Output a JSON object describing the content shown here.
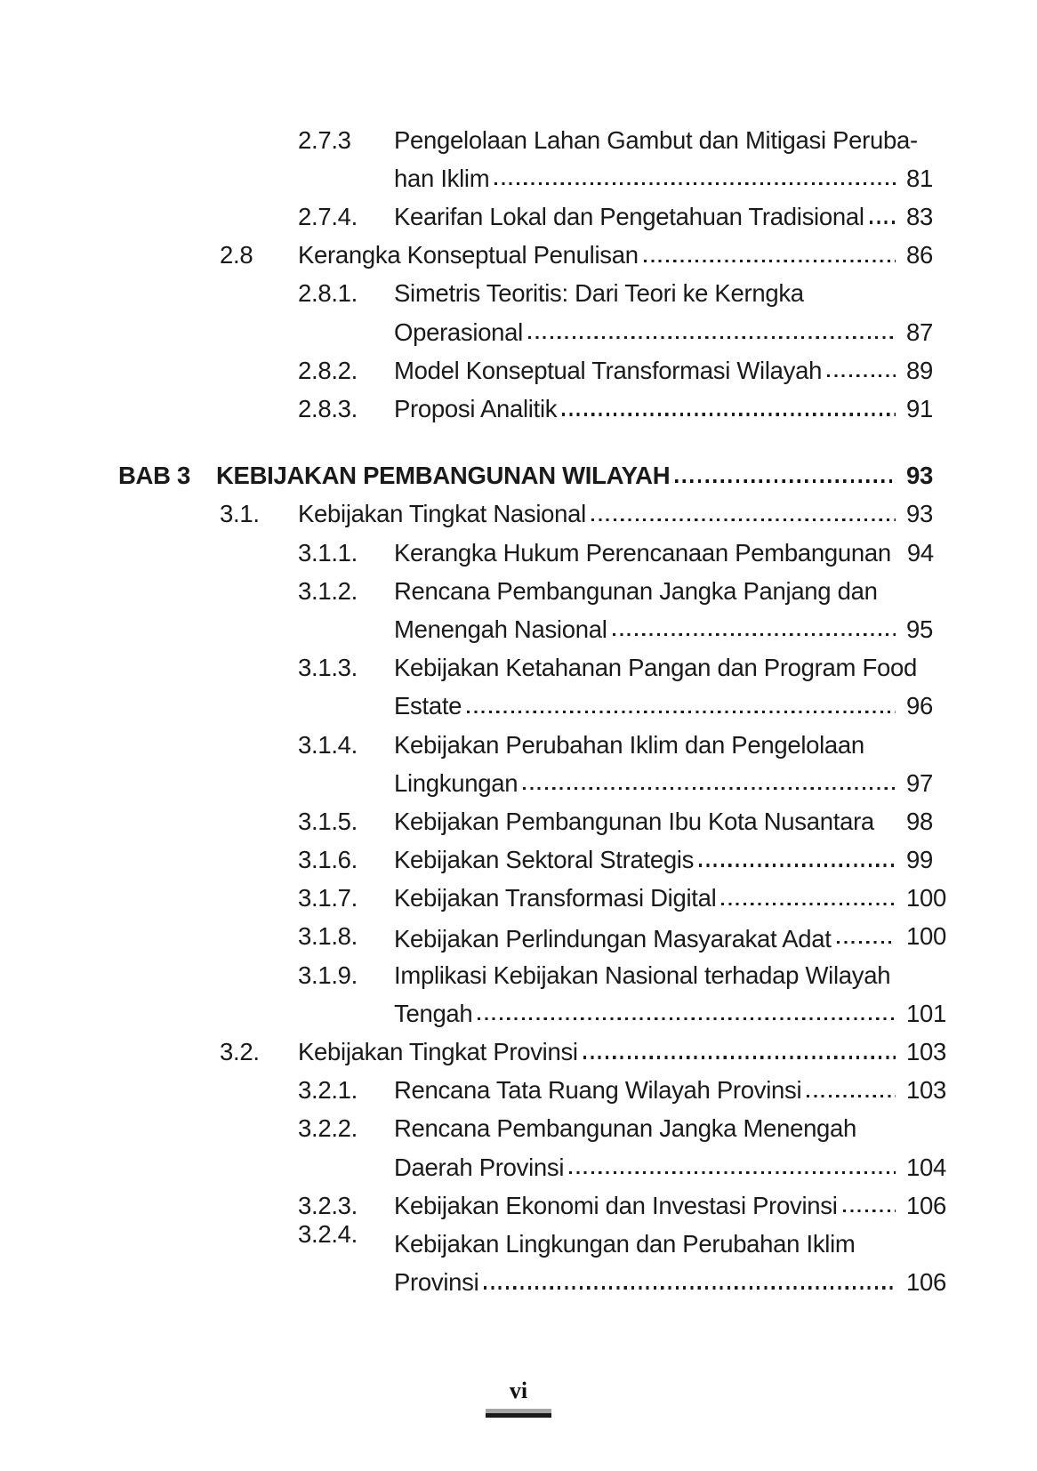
{
  "document": {
    "text_color": "#1a1a1a",
    "background_color": "#ffffff"
  },
  "toc": {
    "rows": [
      {
        "level": "l2",
        "num": "2.7.3",
        "text": "Pengelolaan Lahan Gambut dan Mitigasi Peruba-"
      },
      {
        "level": "cont-l2",
        "text": "han Iklim",
        "leader": true,
        "page": "81"
      },
      {
        "level": "l2",
        "num": "2.7.4.",
        "text": "Kearifan Lokal dan Pengetahuan Tradisional",
        "leader": true,
        "page": "83"
      },
      {
        "level": "l1",
        "num": "2.8",
        "text": "Kerangka Konseptual Penulisan",
        "leader": true,
        "page": "86"
      },
      {
        "level": "l2",
        "num": "2.8.1.",
        "text": "Simetris Teoritis: Dari Teori ke Kerngka"
      },
      {
        "level": "cont-l2",
        "text": "Operasional",
        "leader": true,
        "page": "87"
      },
      {
        "level": "l2",
        "num": "2.8.2.",
        "text": "Model Konseptual Transformasi Wilayah",
        "leader": true,
        "page": "89"
      },
      {
        "level": "l2",
        "num": "2.8.3.",
        "text": "Proposi Analitik",
        "leader": true,
        "page": "91"
      },
      {
        "level": "bab",
        "num": "BAB 3",
        "text": "KEBIJAKAN PEMBANGUNAN WILAYAH",
        "leader": true,
        "page": "93",
        "gap_before": true
      },
      {
        "level": "l1",
        "num": "3.1.",
        "text": "Kebijakan Tingkat Nasional",
        "leader": true,
        "page": "93"
      },
      {
        "level": "l2",
        "num": "3.1.1.",
        "text": "Kerangka Hukum Perencanaan Pembangunan",
        "leader": true,
        "page": "94"
      },
      {
        "level": "l2",
        "num": "3.1.2.",
        "text": "Rencana Pembangunan Jangka Panjang dan"
      },
      {
        "level": "cont-l2",
        "text": "Menengah Nasional",
        "leader": true,
        "page": "95"
      },
      {
        "level": "l2",
        "num": "3.1.3.",
        "text": "Kebijakan Ketahanan Pangan dan Program Food"
      },
      {
        "level": "cont-l2",
        "text": "Estate",
        "leader": true,
        "page": "96"
      },
      {
        "level": "l2",
        "num": "3.1.4.",
        "text": "Kebijakan Perubahan Iklim dan Pengelolaan"
      },
      {
        "level": "cont-l2",
        "text": "Lingkungan",
        "leader": true,
        "page": "97"
      },
      {
        "level": "l2",
        "num": "3.1.5.",
        "text": "Kebijakan Pembangunan Ibu Kota Nusantara",
        "leader": false,
        "page": "98"
      },
      {
        "level": "l2",
        "num": "3.1.6.",
        "text": "Kebijakan Sektoral Strategis",
        "leader": true,
        "page": "99"
      },
      {
        "level": "l2",
        "num": "3.1.7.",
        "text": "Kebijakan Transformasi Digital",
        "leader": true,
        "page": "100"
      },
      {
        "level": "l2",
        "num": "3.1.8.",
        "text": "Kebijakan Perlindungan Masyarakat Adat",
        "leader": true,
        "page": "100",
        "variant": "title-low"
      },
      {
        "level": "l2",
        "num": "3.1.9.",
        "text": "Implikasi Kebijakan Nasional terhadap Wilayah"
      },
      {
        "level": "cont-l2",
        "text": "Tengah",
        "leader": true,
        "page": "101"
      },
      {
        "level": "l1",
        "num": "3.2.",
        "text": "Kebijakan Tingkat Provinsi",
        "leader": true,
        "page": "103"
      },
      {
        "level": "l2",
        "num": "3.2.1.",
        "text": "Rencana Tata Ruang Wilayah Provinsi",
        "leader": true,
        "page": "103"
      },
      {
        "level": "l2",
        "num": "3.2.2.",
        "text": "Rencana Pembangunan Jangka Menengah"
      },
      {
        "level": "cont-l2",
        "text": "Daerah Provinsi",
        "leader": true,
        "page": "104"
      },
      {
        "level": "l2",
        "num": "3.2.3.",
        "text": "Kebijakan Ekonomi dan Investasi Provinsi",
        "leader": true,
        "page": "106"
      },
      {
        "level": "l2",
        "num": "3.2.4.",
        "text": "Kebijakan Lingkungan dan Perubahan Iklim",
        "variant": "num-raised"
      },
      {
        "level": "cont-l2",
        "text": "Provinsi",
        "leader": true,
        "page": "106"
      }
    ]
  },
  "footer": {
    "page_number": "vi",
    "rule_top_color": "#a6a6a6",
    "rule_bottom_color": "#1a1a1a"
  }
}
